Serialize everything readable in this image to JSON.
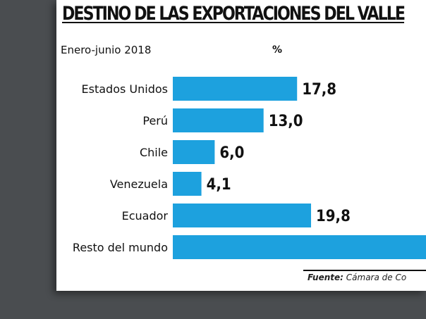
{
  "chart_data": {
    "type": "bar",
    "orientation": "horizontal",
    "title": "DESTINO DE LAS EXPORTACIONES DEL VALLE",
    "subtitle": "Enero-junio 2018",
    "unit": "%",
    "categories": [
      "Estados Unidos",
      "Perú",
      "Chile",
      "Venezuela",
      "Ecuador",
      "Resto del mundo"
    ],
    "values": [
      17.8,
      13.0,
      6.0,
      4.1,
      19.8,
      null
    ],
    "value_labels": [
      "17,8",
      "13,0",
      "6,0",
      "4,1",
      "19,8",
      ""
    ],
    "bar_color": "#1da1de",
    "source_key": "Fuente:",
    "source_text": "Cámara de Co"
  }
}
